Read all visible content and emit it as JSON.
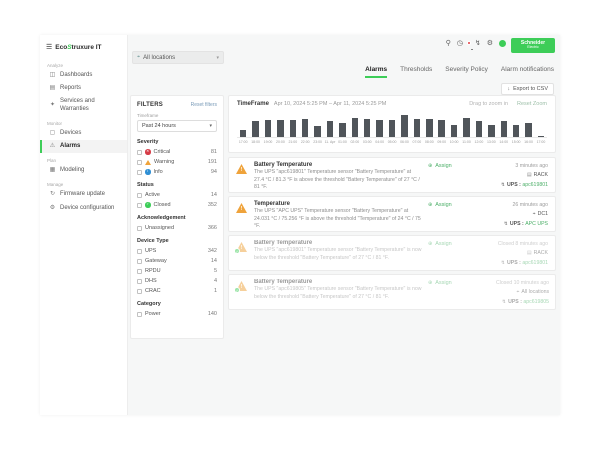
{
  "brand": {
    "menu_icon": "☰",
    "name_prefix": "Eco",
    "name_s": "S",
    "name_suffix": "truxure IT",
    "green": "#3dcd58"
  },
  "topbar": {
    "logo_line1": "Schneider",
    "logo_line2": "Electric"
  },
  "sidebar": {
    "sections": [
      {
        "title": "Analyze",
        "items": [
          {
            "label": "Dashboards"
          },
          {
            "label": "Reports"
          },
          {
            "label": "Services and Warranties"
          }
        ]
      },
      {
        "title": "Monitor",
        "items": [
          {
            "label": "Devices"
          },
          {
            "label": "Alarms"
          }
        ]
      },
      {
        "title": "Plan",
        "items": [
          {
            "label": "Modeling"
          }
        ]
      },
      {
        "title": "Manage",
        "items": [
          {
            "label": "Firmware update"
          },
          {
            "label": "Device configuration"
          }
        ]
      }
    ]
  },
  "location_filter": {
    "value": "All locations"
  },
  "tabs": [
    {
      "label": "Alarms"
    },
    {
      "label": "Thresholds"
    },
    {
      "label": "Severity Policy"
    },
    {
      "label": "Alarm notifications"
    }
  ],
  "export_label": "Export to CSV",
  "filters": {
    "title": "FILTERS",
    "reset_label": "Reset filters",
    "timeframe_label": "Timeframe",
    "timeframe_value": "Past 24 hours",
    "groups": [
      {
        "title": "Severity",
        "options": [
          {
            "label": "Critical",
            "count": "81"
          },
          {
            "label": "Warning",
            "count": "191"
          },
          {
            "label": "Info",
            "count": "94"
          }
        ]
      },
      {
        "title": "Status",
        "options": [
          {
            "label": "Active",
            "count": "14"
          },
          {
            "label": "Closed",
            "count": "352"
          }
        ]
      },
      {
        "title": "Acknowledgement",
        "options": [
          {
            "label": "Unassigned",
            "count": "366"
          }
        ]
      },
      {
        "title": "Device Type",
        "options": [
          {
            "label": "UPS",
            "count": "342"
          },
          {
            "label": "Gateway",
            "count": "14"
          },
          {
            "label": "RPDU",
            "count": "5"
          },
          {
            "label": "DHS",
            "count": "4"
          },
          {
            "label": "CRAC",
            "count": "1"
          }
        ]
      },
      {
        "title": "Category",
        "options": [
          {
            "label": "Power",
            "count": "140"
          }
        ]
      }
    ]
  },
  "chart": {
    "title": "TimeFrame",
    "range_start": "Apr 10, 2024 5:25 PM",
    "range_sep": "–",
    "range_end": "Apr 11, 2024 5:25 PM",
    "drag_hint": "Drag to zoom in",
    "reset_label": "Reset Zoom"
  },
  "chart_data": {
    "type": "bar",
    "title": "TimeFrame",
    "categories": [
      "17:00",
      "18:00",
      "19:00",
      "20:00",
      "21:00",
      "22:00",
      "23:00",
      "11. Apr",
      "01:00",
      "02:00",
      "03:00",
      "04:00",
      "05:00",
      "06:00",
      "07:00",
      "08:00",
      "09:00",
      "10:00",
      "11:00",
      "12:00",
      "13:00",
      "14:00",
      "15:00",
      "16:00",
      "17:00"
    ],
    "values": [
      28,
      60,
      66,
      64,
      66,
      68,
      44,
      62,
      52,
      72,
      70,
      66,
      64,
      84,
      68,
      70,
      66,
      48,
      72,
      62,
      46,
      60,
      48,
      54,
      3
    ],
    "xlabel": "",
    "ylabel": "",
    "ylim": [
      0,
      100
    ],
    "grid": false,
    "legend": false,
    "bar_color": "#50555a"
  },
  "labels": {
    "device_sep": " : "
  },
  "alarms": [
    {
      "severity": "warning",
      "title": "Battery Temperature",
      "description": "The UPS \"apc619801\" Temperature sensor \"Battery Temperature\" at 27.4 °C / 81.3 °F is above the threshold \"Battery Temperature\" of 27 °C / 81 °F.",
      "assign_label": "Assign",
      "time": "3 minutes ago",
      "location": "RACK",
      "device_type": "UPS",
      "device_name": "apc619801",
      "closed": false
    },
    {
      "severity": "warning",
      "title": "Temperature",
      "description": "The UPS \"APC UPS\" Temperature sensor \"Battery Temperature\" at 24.031 °C / 75.256 °F is above the threshold \"Temperature\" of 24 °C / 75 °F.",
      "assign_label": "Assign",
      "time": "26 minutes ago",
      "location": "DC1",
      "device_type": "UPS",
      "device_name": "APC UPS",
      "closed": false
    },
    {
      "severity": "warning-cleared",
      "title": "Battery Temperature",
      "description": "The UPS \"apc619801\" Temperature sensor \"Battery Temperature\" is now below the threshold \"Battery Temperature\" of 27 °C / 81 °F.",
      "assign_label": "Assign",
      "time": "Closed 8 minutes ago",
      "location": "RACK",
      "device_type": "UPS",
      "device_name": "apc619801",
      "closed": true
    },
    {
      "severity": "warning-cleared",
      "title": "Battery Temperature",
      "description": "The UPS \"apc619805\" Temperature sensor \"Battery Temperature\" is now below the threshold \"Battery Temperature\" of 27 °C / 81 °F.",
      "assign_label": "Assign",
      "time": "Closed 10 minutes ago",
      "location": "All locations",
      "device_type": "UPS",
      "device_name": "apc619805",
      "closed": true
    }
  ],
  "colors": {
    "brand_green": "#3dcd58",
    "link_green": "#4caf68",
    "critical": "#d63c47",
    "warning": "#efa33b",
    "info": "#2f8fd4",
    "closed": "#3dcd58",
    "bar": "#50555a"
  }
}
